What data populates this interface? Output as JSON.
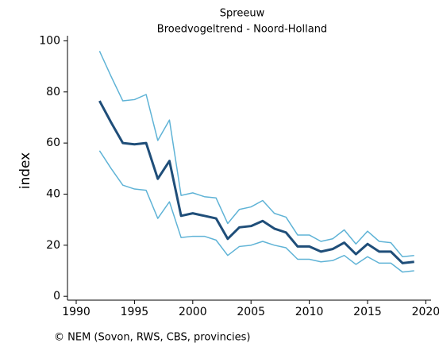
{
  "chart_data": {
    "type": "line",
    "title": "Spreeuw",
    "subtitle": "Broedvogeltrend - Noord-Holland",
    "ylabel": "index",
    "source": "© NEM (Sovon, RWS, CBS, provincies)",
    "x": [
      1992,
      1993,
      1994,
      1995,
      1996,
      1997,
      1998,
      1999,
      2000,
      2001,
      2002,
      2003,
      2004,
      2005,
      2006,
      2007,
      2008,
      2009,
      2010,
      2011,
      2012,
      2013,
      2014,
      2015,
      2016,
      2017,
      2018,
      2019
    ],
    "series": [
      {
        "color": "#1f4e79",
        "values": [
          76.5,
          68,
          60,
          59.5,
          60,
          46,
          53,
          31.5,
          32.5,
          31.5,
          30.5,
          22.5,
          27,
          27.5,
          29.5,
          26.5,
          25,
          19.5,
          19.5,
          17.5,
          18.5,
          21,
          16.5,
          20.5,
          17.5,
          17.5,
          13,
          13.5
        ]
      },
      {
        "color": "#5fb3d6",
        "values": [
          96,
          86,
          76.5,
          77,
          79,
          61,
          69,
          39.5,
          40.5,
          39,
          38.5,
          28.5,
          34,
          35,
          37.5,
          32.5,
          31,
          24,
          24,
          21.5,
          22.5,
          26,
          20.5,
          25.5,
          21.5,
          21,
          15.5,
          16
        ]
      },
      {
        "color": "#5fb3d6",
        "values": [
          57,
          50,
          43.5,
          42,
          41.5,
          30.5,
          37,
          23,
          23.5,
          23.5,
          22,
          16,
          19.5,
          20,
          21.5,
          20,
          19,
          14.5,
          14.5,
          13.5,
          14,
          16,
          12.5,
          15.5,
          13,
          13,
          9.5,
          10
        ]
      }
    ],
    "xlim": [
      1989.25,
      2020.45
    ],
    "xticks": [
      1990,
      1995,
      2000,
      2005,
      2010,
      2015,
      2020
    ],
    "ylim": [
      -1.5,
      102
    ],
    "yticks": [
      0,
      20,
      40,
      60,
      80,
      100
    ]
  }
}
